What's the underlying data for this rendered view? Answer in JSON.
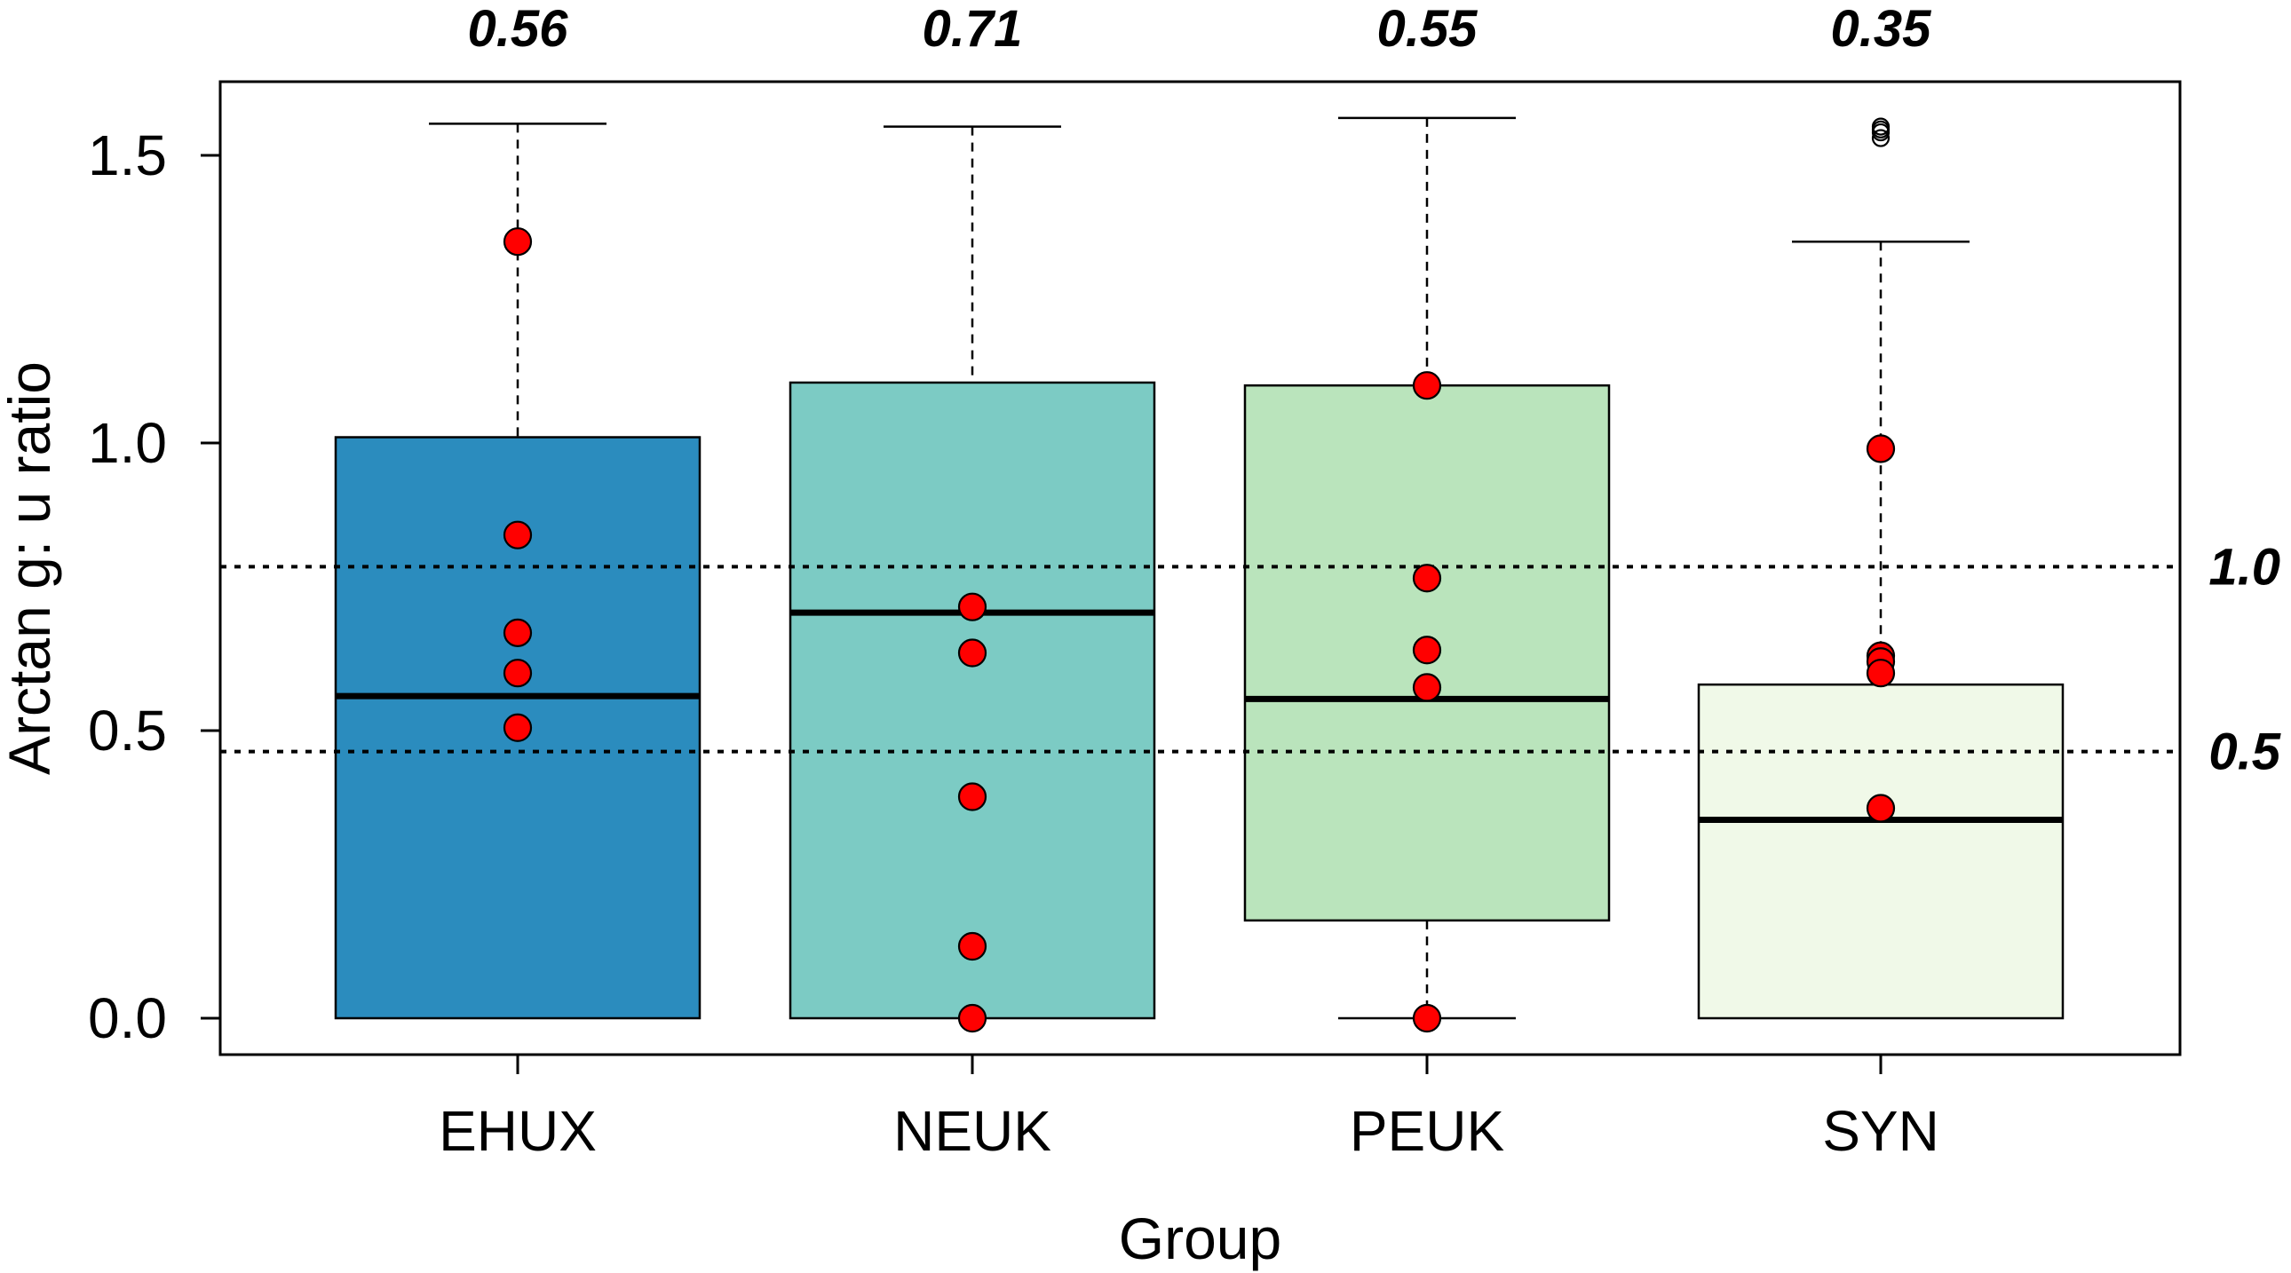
{
  "chart_data": {
    "type": "box",
    "xlabel": "Group",
    "ylabel": "Arctan g: u ratio",
    "ylim": [
      -0.06,
      1.62
    ],
    "yticks": [
      "0.0",
      "0.5",
      "1.0",
      "1.5"
    ],
    "grid": false,
    "legend": "none",
    "groups": [
      {
        "name": "EHUX",
        "color": "#2b8cbe",
        "median_label": "0.56",
        "box": {
          "whisker_low": 0.0,
          "q1": 0.0,
          "median": 0.56,
          "q3": 1.01,
          "whisker_high": 1.555
        },
        "outliers": [],
        "points": [
          1.35,
          0.84,
          0.67,
          0.6,
          0.505
        ]
      },
      {
        "name": "NEUK",
        "color": "#7ccbc4",
        "median_label": "0.71",
        "box": {
          "whisker_low": 0.0,
          "q1": 0.0,
          "median": 0.705,
          "q3": 1.105,
          "whisker_high": 1.55
        },
        "outliers": [],
        "points": [
          0.715,
          0.635,
          0.385,
          0.125,
          0.0
        ]
      },
      {
        "name": "PEUK",
        "color": "#bae4bc",
        "median_label": "0.55",
        "box": {
          "whisker_low": 0.0,
          "q1": 0.17,
          "median": 0.555,
          "q3": 1.1,
          "whisker_high": 1.565
        },
        "outliers": [],
        "points": [
          1.1,
          0.765,
          0.64,
          0.575,
          0.0
        ]
      },
      {
        "name": "SYN",
        "color": "#f0f9e8",
        "median_label": "0.35",
        "box": {
          "whisker_low": 0.0,
          "q1": 0.0,
          "median": 0.345,
          "q3": 0.58,
          "whisker_high": 1.35
        },
        "outliers": [
          1.53,
          1.54,
          1.545,
          1.55
        ],
        "points": [
          0.99,
          0.63,
          0.62,
          0.6,
          0.365
        ]
      }
    ],
    "reference_lines": [
      {
        "y": 0.785,
        "label": "1.0"
      },
      {
        "y": 0.4636,
        "label": "0.5"
      }
    ]
  }
}
